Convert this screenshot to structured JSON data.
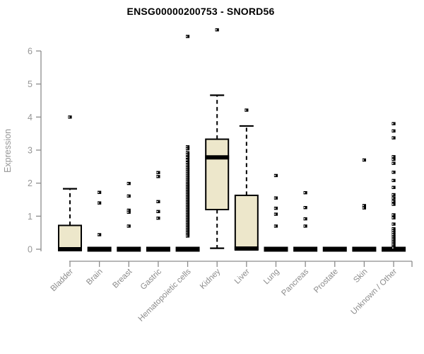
{
  "chart_data": {
    "type": "boxplot",
    "title": "ENSG00000200753 - SNORD56",
    "xlabel": "",
    "ylabel": "Expression",
    "ylim": [
      0,
      6
    ],
    "yticks": [
      0,
      1,
      2,
      3,
      4,
      5,
      6
    ],
    "grid": false,
    "legend": "none",
    "colors": {
      "box_fill": "#ede7cb",
      "box_stroke": "#000000",
      "median": "#000000",
      "whisker": "#000000",
      "outlier": "#000000",
      "axis": "#8c8c8c",
      "tick_label": "#969696",
      "title": "#000000",
      "background": "#ffffff"
    },
    "categories": [
      "Bladder",
      "Brain",
      "Breast",
      "Gastric",
      "Hematopoietic cells",
      "Kidney",
      "Liver",
      "Lung",
      "Pancreas",
      "Prostate",
      "Skin",
      "Unknown / Other"
    ],
    "series": [
      {
        "category": "Bladder",
        "q1": 0,
        "median": 0,
        "q3": 0.72,
        "whisker_low": 0,
        "whisker_high": 1.83,
        "outliers": [
          4.0
        ]
      },
      {
        "category": "Brain",
        "q1": 0,
        "median": 0,
        "q3": 0,
        "whisker_low": 0,
        "whisker_high": 0,
        "outliers": [
          1.72,
          1.4,
          0.44
        ]
      },
      {
        "category": "Breast",
        "q1": 0,
        "median": 0,
        "q3": 0,
        "whisker_low": 0,
        "whisker_high": 0,
        "outliers": [
          1.99,
          1.61,
          1.18,
          1.12,
          0.7
        ]
      },
      {
        "category": "Gastric",
        "q1": 0,
        "median": 0,
        "q3": 0,
        "whisker_low": 0,
        "whisker_high": 0,
        "outliers": [
          2.32,
          2.2,
          1.44,
          1.14,
          0.94
        ]
      },
      {
        "category": "Hematopoietic cells",
        "q1": 0,
        "median": 0,
        "q3": 0,
        "whisker_low": 0,
        "whisker_high": 0,
        "outliers": [
          6.44,
          3.1,
          3.04,
          2.92,
          2.86,
          2.78,
          2.7,
          2.62,
          2.55,
          2.48,
          2.42,
          2.36,
          2.3,
          2.24,
          2.18,
          2.12,
          2.06,
          2.0,
          1.95,
          1.9,
          1.85,
          1.8,
          1.75,
          1.7,
          1.65,
          1.6,
          1.55,
          1.5,
          1.45,
          1.4,
          1.35,
          1.3,
          1.25,
          1.2,
          1.15,
          1.1,
          1.05,
          1.0,
          0.95,
          0.9,
          0.85,
          0.8,
          0.75,
          0.7,
          0.65,
          0.6,
          0.55,
          0.5,
          0.45,
          0.4
        ]
      },
      {
        "category": "Kidney",
        "q1": 1.2,
        "median": 2.78,
        "q3": 3.33,
        "whisker_low": 0.03,
        "whisker_high": 4.66,
        "outliers": [
          6.64
        ]
      },
      {
        "category": "Liver",
        "q1": 0,
        "median": 0.02,
        "q3": 1.63,
        "whisker_low": 0,
        "whisker_high": 3.73,
        "outliers": [
          4.21
        ]
      },
      {
        "category": "Lung",
        "q1": 0,
        "median": 0,
        "q3": 0,
        "whisker_low": 0,
        "whisker_high": 0,
        "outliers": [
          2.23,
          1.55,
          1.24,
          1.06,
          0.7
        ]
      },
      {
        "category": "Pancreas",
        "q1": 0,
        "median": 0,
        "q3": 0,
        "whisker_low": 0,
        "whisker_high": 0,
        "outliers": [
          1.71,
          1.26,
          0.92,
          0.7
        ]
      },
      {
        "category": "Prostate",
        "q1": 0,
        "median": 0,
        "q3": 0,
        "whisker_low": 0,
        "whisker_high": 0,
        "outliers": []
      },
      {
        "category": "Skin",
        "q1": 0,
        "median": 0,
        "q3": 0,
        "whisker_low": 0,
        "whisker_high": 0,
        "outliers": [
          2.7,
          1.32,
          1.25
        ]
      },
      {
        "category": "Unknown / Other",
        "q1": 0,
        "median": 0,
        "q3": 0,
        "whisker_low": 0,
        "whisker_high": 0,
        "outliers": [
          3.8,
          3.58,
          3.37,
          2.8,
          2.72,
          2.6,
          2.33,
          2.08,
          1.87,
          1.65,
          1.55,
          1.45,
          1.36,
          1.04,
          0.95,
          0.76,
          0.62,
          0.56,
          0.5,
          0.44,
          0.38,
          0.33,
          0.28,
          0.23,
          0.18,
          0.13,
          0.08,
          0.04
        ]
      }
    ]
  }
}
